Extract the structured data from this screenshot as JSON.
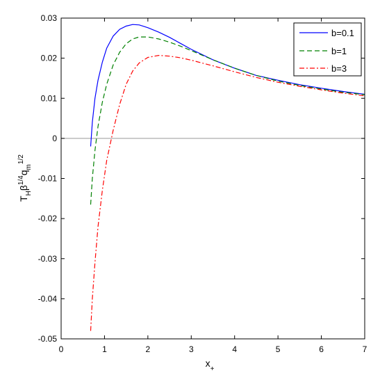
{
  "chart_data": {
    "type": "line",
    "title": "",
    "xlabel": "x",
    "xlabel_sub": "+",
    "ylabel_parts": [
      "T",
      "H",
      "β",
      "1/4",
      "q",
      "m",
      "1/2"
    ],
    "xlim": [
      0,
      7
    ],
    "ylim": [
      -0.05,
      0.03
    ],
    "x_ticks": [
      0,
      1,
      2,
      3,
      4,
      5,
      6,
      7
    ],
    "y_ticks": [
      -0.05,
      -0.04,
      -0.03,
      -0.02,
      -0.01,
      0,
      0.01,
      0.02,
      0.03
    ],
    "x_tick_labels": [
      "0",
      "1",
      "2",
      "3",
      "4",
      "5",
      "6",
      "7"
    ],
    "y_tick_labels": [
      "-0.05",
      "-0.04",
      "-0.03",
      "-0.02",
      "-0.01",
      "0",
      "0.01",
      "0.02",
      "0.03"
    ],
    "grid": false,
    "legend_position": "top-right",
    "zero_line": {
      "y": 0,
      "color": "#999999"
    },
    "series": [
      {
        "name": "b=0.1",
        "color": "#0000ff",
        "dash": "solid",
        "points": [
          [
            0.68,
            -0.002
          ],
          [
            0.72,
            0.004
          ],
          [
            0.78,
            0.01
          ],
          [
            0.85,
            0.0145
          ],
          [
            0.95,
            0.019
          ],
          [
            1.05,
            0.0225
          ],
          [
            1.2,
            0.0255
          ],
          [
            1.35,
            0.0272
          ],
          [
            1.5,
            0.028
          ],
          [
            1.65,
            0.0284
          ],
          [
            1.8,
            0.0283
          ],
          [
            2.0,
            0.0276
          ],
          [
            2.25,
            0.0265
          ],
          [
            2.5,
            0.0252
          ],
          [
            2.75,
            0.0237
          ],
          [
            3.0,
            0.0222
          ],
          [
            3.5,
            0.0196
          ],
          [
            4.0,
            0.0175
          ],
          [
            4.5,
            0.0157
          ],
          [
            5.0,
            0.0145
          ],
          [
            5.5,
            0.0134
          ],
          [
            6.0,
            0.0125
          ],
          [
            6.5,
            0.0117
          ],
          [
            7.0,
            0.011
          ]
        ]
      },
      {
        "name": "b=1",
        "color": "#008000",
        "dash": "dashed",
        "points": [
          [
            0.68,
            -0.0165
          ],
          [
            0.72,
            -0.01
          ],
          [
            0.78,
            -0.003
          ],
          [
            0.85,
            0.003
          ],
          [
            0.95,
            0.009
          ],
          [
            1.05,
            0.0135
          ],
          [
            1.2,
            0.0183
          ],
          [
            1.35,
            0.0215
          ],
          [
            1.5,
            0.0236
          ],
          [
            1.65,
            0.0248
          ],
          [
            1.8,
            0.0253
          ],
          [
            2.0,
            0.0253
          ],
          [
            2.25,
            0.0248
          ],
          [
            2.5,
            0.024
          ],
          [
            2.75,
            0.023
          ],
          [
            3.0,
            0.0219
          ],
          [
            3.5,
            0.0196
          ],
          [
            4.0,
            0.0175
          ],
          [
            4.5,
            0.0157
          ],
          [
            5.0,
            0.0143
          ],
          [
            5.5,
            0.0132
          ],
          [
            6.0,
            0.0123
          ],
          [
            6.5,
            0.0115
          ],
          [
            7.0,
            0.0109
          ]
        ]
      },
      {
        "name": "b=3",
        "color": "#ff0000",
        "dash": "dashdot",
        "points": [
          [
            0.68,
            -0.048
          ],
          [
            0.72,
            -0.04
          ],
          [
            0.78,
            -0.031
          ],
          [
            0.85,
            -0.022
          ],
          [
            0.95,
            -0.013
          ],
          [
            1.05,
            -0.0055
          ],
          [
            1.2,
            0.002
          ],
          [
            1.35,
            0.0085
          ],
          [
            1.5,
            0.0135
          ],
          [
            1.65,
            0.0168
          ],
          [
            1.8,
            0.0188
          ],
          [
            2.0,
            0.0202
          ],
          [
            2.25,
            0.0207
          ],
          [
            2.5,
            0.0205
          ],
          [
            2.75,
            0.0201
          ],
          [
            3.0,
            0.0195
          ],
          [
            3.5,
            0.0181
          ],
          [
            4.0,
            0.0166
          ],
          [
            4.5,
            0.0152
          ],
          [
            5.0,
            0.014
          ],
          [
            5.5,
            0.013
          ],
          [
            6.0,
            0.0121
          ],
          [
            6.5,
            0.0113
          ],
          [
            7.0,
            0.0106
          ]
        ]
      }
    ]
  }
}
